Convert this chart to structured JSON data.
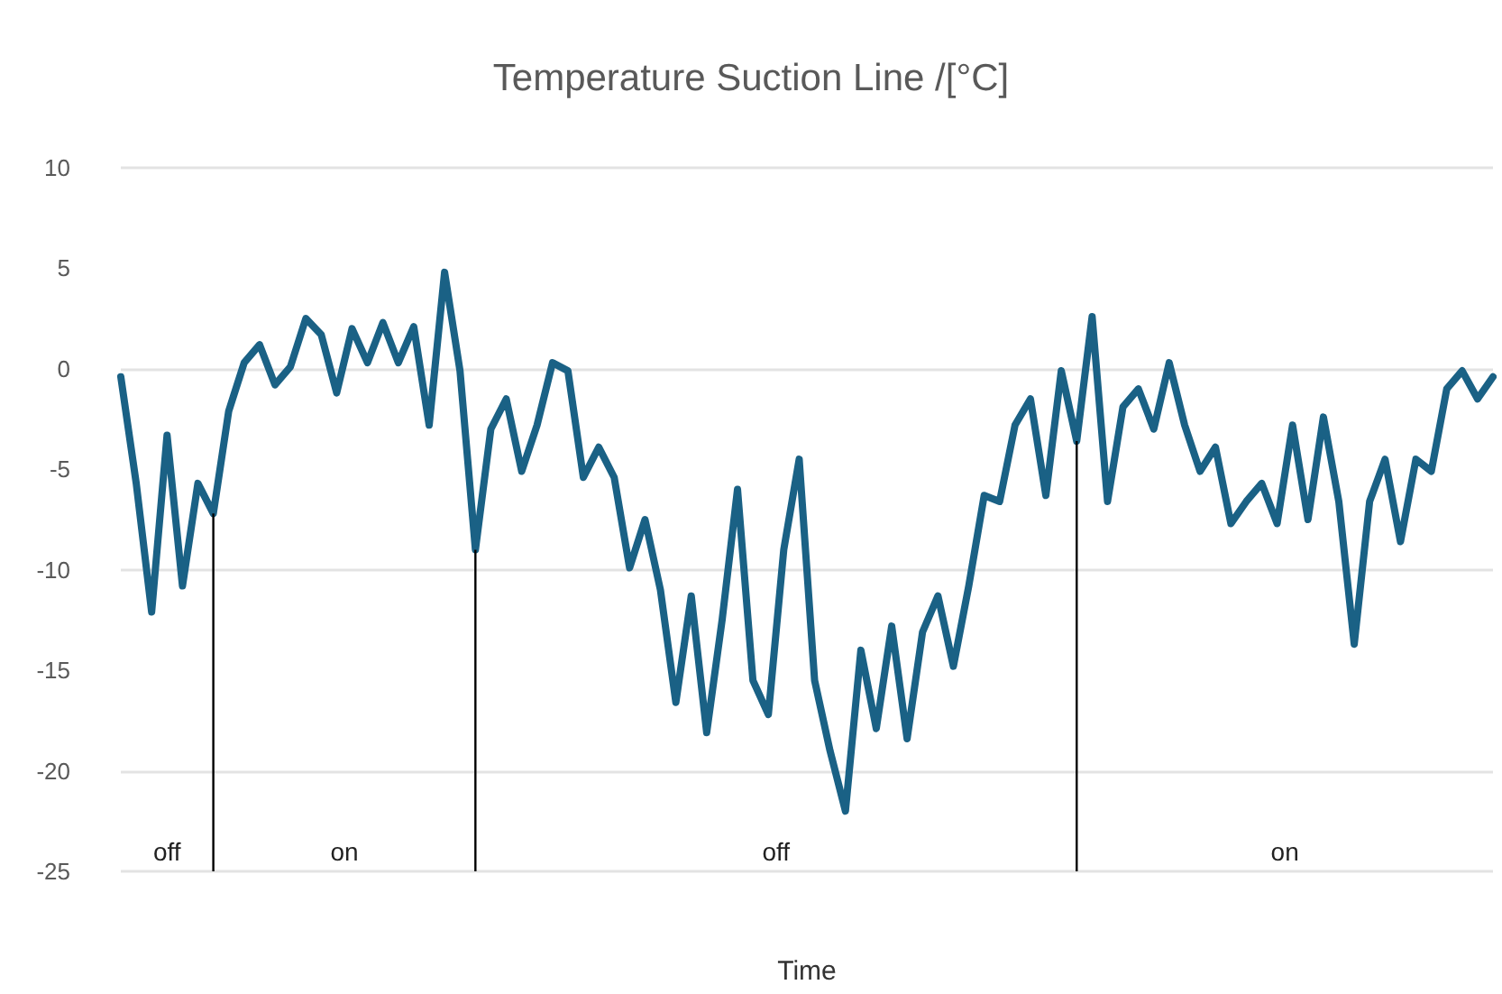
{
  "chart_data": {
    "type": "line",
    "title": "Temperature Suction Line /[°C]",
    "xlabel": "Time",
    "categories": [
      null,
      null,
      null,
      null,
      null,
      null,
      null,
      null,
      null,
      null,
      null,
      null,
      null,
      null,
      null,
      null,
      null,
      null,
      null,
      null,
      null,
      null,
      null,
      null,
      null,
      null,
      null,
      null,
      null,
      null,
      null,
      null,
      null,
      null,
      null,
      null,
      null,
      null,
      null,
      null,
      null,
      null,
      null,
      null,
      null,
      null,
      null,
      null,
      null,
      null,
      null,
      null,
      null,
      null,
      null,
      null,
      null,
      null,
      null,
      null,
      null,
      null,
      null,
      null,
      null,
      null,
      null,
      null,
      null,
      null,
      null,
      null,
      null,
      null,
      null,
      null,
      null,
      null,
      null,
      null,
      null,
      null,
      null,
      null,
      null,
      null,
      null,
      null,
      null,
      null
    ],
    "series": [
      {
        "color": "#1a6185",
        "values": [
          -0.4,
          -5.7,
          -12.1,
          -3.3,
          -10.8,
          -5.7,
          -7.2,
          -2.1,
          0.3,
          1.2,
          -0.8,
          0.1,
          2.5,
          1.7,
          -1.2,
          2.0,
          0.3,
          2.3,
          0.3,
          2.1,
          -2.8,
          4.8,
          -0.1,
          -9.0,
          -3.0,
          -1.5,
          -5.1,
          -2.8,
          0.3,
          -0.1,
          -5.4,
          -3.9,
          -5.4,
          -9.9,
          -7.5,
          -11.0,
          -16.6,
          -11.3,
          -18.1,
          -12.5,
          -6.0,
          -15.5,
          -17.2,
          -9.0,
          -4.5,
          -15.5,
          -19.0,
          -22.0,
          -14.0,
          -17.9,
          -12.8,
          -18.4,
          -13.1,
          -11.3,
          -14.8,
          -10.8,
          -6.3,
          -6.6,
          -2.8,
          -1.5,
          -6.3,
          -0.1,
          -3.6,
          2.6,
          -6.6,
          -1.9,
          -1.0,
          -3.0,
          0.3,
          -2.8,
          -5.1,
          -3.9,
          -7.7,
          -6.6,
          -5.7,
          -7.7,
          -2.8,
          -7.5,
          -2.4,
          -6.6,
          -13.7,
          -6.6,
          -4.5,
          -8.6,
          -4.5,
          -5.1,
          -1.0,
          -0.1,
          -1.5,
          -0.4
        ]
      }
    ],
    "ylim": [
      -25,
      10
    ],
    "yticks": [
      -25,
      -20,
      -15,
      -10,
      -5,
      0,
      5,
      10
    ],
    "tick_labels": "y",
    "grid": "y",
    "line_style": "solid",
    "annotations": [
      "off",
      "on",
      "off",
      "on"
    ]
  }
}
